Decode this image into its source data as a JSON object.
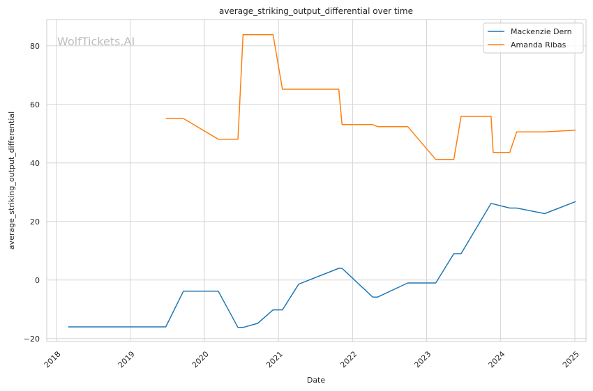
{
  "chart_data": {
    "type": "line",
    "title": "average_striking_output_differential over time",
    "xlabel": "Date",
    "ylabel": "average_striking_output_differential",
    "watermark": "WolfTickets.AI",
    "xlim": [
      "2017-11-15",
      "2025-02-25"
    ],
    "ylim": [
      -21,
      89
    ],
    "x_ticks": [
      "2018-01-01",
      "2019-01-01",
      "2020-01-01",
      "2021-01-01",
      "2022-01-01",
      "2023-01-01",
      "2024-01-01",
      "2025-01-01"
    ],
    "x_tick_labels": [
      "2018",
      "2019",
      "2020",
      "2021",
      "2022",
      "2023",
      "2024",
      "2025"
    ],
    "y_ticks": [
      -20,
      0,
      20,
      40,
      60,
      80
    ],
    "y_tick_labels": [
      "−20",
      "0",
      "20",
      "40",
      "60",
      "80"
    ],
    "grid": true,
    "legend_position": "top-right",
    "series": [
      {
        "name": "Mackenzie Dern",
        "color": "#1f77b4",
        "points": [
          [
            "2018-03-01",
            -16
          ],
          [
            "2019-06-25",
            -16
          ],
          [
            "2019-09-20",
            -3.8
          ],
          [
            "2020-03-10",
            -3.8
          ],
          [
            "2020-06-15",
            -16.2
          ],
          [
            "2020-07-10",
            -16.2
          ],
          [
            "2020-09-20",
            -14.8
          ],
          [
            "2020-12-05",
            -10.2
          ],
          [
            "2021-01-20",
            -10.2
          ],
          [
            "2021-04-10",
            -1.4
          ],
          [
            "2021-10-25",
            4
          ],
          [
            "2021-11-10",
            4
          ],
          [
            "2022-04-10",
            -5.8
          ],
          [
            "2022-05-05",
            -5.8
          ],
          [
            "2022-09-30",
            -1
          ],
          [
            "2023-02-15",
            -1
          ],
          [
            "2023-05-15",
            9
          ],
          [
            "2023-06-20",
            9
          ],
          [
            "2023-11-15",
            26.2
          ],
          [
            "2024-02-15",
            24.6
          ],
          [
            "2024-03-20",
            24.6
          ],
          [
            "2024-08-05",
            22.7
          ],
          [
            "2025-01-05",
            26.8
          ]
        ]
      },
      {
        "name": "Amanda Ribas",
        "color": "#ff7f0e",
        "points": [
          [
            "2019-06-25",
            55.2
          ],
          [
            "2019-09-20",
            55.2
          ],
          [
            "2020-03-10",
            48.1
          ],
          [
            "2020-06-15",
            48.1
          ],
          [
            "2020-07-10",
            83.8
          ],
          [
            "2020-12-05",
            83.8
          ],
          [
            "2021-01-20",
            65.2
          ],
          [
            "2021-10-25",
            65.2
          ],
          [
            "2021-11-10",
            53.1
          ],
          [
            "2022-04-10",
            53.1
          ],
          [
            "2022-05-05",
            52.4
          ],
          [
            "2022-09-30",
            52.4
          ],
          [
            "2023-02-15",
            41.2
          ],
          [
            "2023-05-15",
            41.2
          ],
          [
            "2023-06-20",
            55.9
          ],
          [
            "2023-11-15",
            55.9
          ],
          [
            "2023-11-25",
            43.6
          ],
          [
            "2024-02-15",
            43.6
          ],
          [
            "2024-03-20",
            50.6
          ],
          [
            "2024-08-05",
            50.6
          ],
          [
            "2025-01-05",
            51.2
          ]
        ]
      }
    ]
  }
}
